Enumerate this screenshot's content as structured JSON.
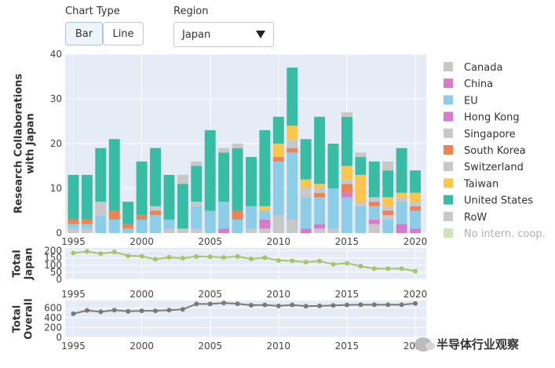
{
  "controls": {
    "chart_type_label": "Chart Type",
    "bar_label": "Bar",
    "line_label": "Line",
    "region_label": "Region",
    "region_value": "Japan"
  },
  "watermark": "半导体行业观察",
  "colors": {
    "plot_bg": "#e5ecf6",
    "Canada": "#c8c8c8",
    "China": "#d67bc9",
    "EU": "#8ecde8",
    "Hong Kong": "#d67bc9",
    "Singapore": "#c8c8c8",
    "South Korea": "#ec8354",
    "Switzerland": "#c8c8c8",
    "Taiwan": "#fbc54e",
    "United States": "#38bca4",
    "RoW": "#c8c8c8",
    "No intern. coop.": "#cfe3b4",
    "japan_line": "#a5c568",
    "overall_line": "#7a7a7a"
  },
  "chart_data": [
    {
      "type": "bar",
      "stacked": true,
      "ylabel": "Research Collaborations with Japan",
      "ylim": [
        0,
        40
      ],
      "yticks": [
        0,
        10,
        20,
        30,
        40
      ],
      "xticks": [
        1995,
        2000,
        2005,
        2010,
        2015,
        2020
      ],
      "x": [
        1995,
        1996,
        1997,
        1998,
        1999,
        2000,
        2001,
        2002,
        2003,
        2004,
        2005,
        2006,
        2007,
        2008,
        2009,
        2010,
        2011,
        2012,
        2013,
        2014,
        2015,
        2016,
        2017,
        2018,
        2019,
        2020
      ],
      "legend_position": "right",
      "legend": [
        "Canada",
        "China",
        "EU",
        "Hong Kong",
        "Singapore",
        "South Korea",
        "Switzerland",
        "Taiwan",
        "United States",
        "RoW",
        "No intern. coop."
      ],
      "series": [
        {
          "name": "RoW",
          "values": [
            1,
            1,
            0,
            0,
            0,
            0,
            0,
            1,
            1,
            1,
            0,
            0,
            0,
            1,
            1,
            4,
            3,
            0,
            1,
            1,
            0,
            0,
            2,
            0,
            0,
            0
          ]
        },
        {
          "name": "China",
          "values": [
            0,
            0,
            0,
            0,
            0,
            0,
            0,
            0,
            0,
            0,
            0,
            1,
            0,
            0,
            2,
            0,
            0,
            1,
            1,
            0,
            0,
            0,
            1,
            0,
            2,
            1
          ]
        },
        {
          "name": "EU",
          "values": [
            1,
            1,
            4,
            3,
            1,
            3,
            4,
            2,
            0,
            5,
            5,
            6,
            3,
            5,
            2,
            12,
            15,
            7,
            6,
            9,
            8,
            6,
            3,
            3,
            5,
            4
          ]
        },
        {
          "name": "Hong Kong",
          "values": [
            0,
            0,
            0,
            0,
            0,
            0,
            0,
            0,
            0,
            0,
            0,
            0,
            0,
            0,
            0,
            0,
            0,
            0,
            0,
            0,
            1,
            0,
            0,
            0,
            0,
            0
          ]
        },
        {
          "name": "Singapore",
          "values": [
            0,
            0,
            0,
            0,
            0,
            0,
            0,
            0,
            0,
            1,
            0,
            0,
            0,
            0,
            0,
            0,
            0,
            1,
            0,
            0,
            0,
            0,
            0,
            1,
            0,
            0
          ]
        },
        {
          "name": "South Korea",
          "values": [
            1,
            1,
            0,
            2,
            1,
            1,
            1,
            0,
            0,
            0,
            0,
            0,
            2,
            0,
            0,
            1,
            1,
            0,
            1,
            0,
            2,
            0,
            1,
            1,
            0,
            1
          ]
        },
        {
          "name": "Switzerland",
          "values": [
            0,
            0,
            3,
            0,
            0,
            0,
            1,
            0,
            0,
            0,
            0,
            0,
            0,
            0,
            0,
            0,
            2,
            1,
            1,
            0,
            1,
            1,
            1,
            1,
            1,
            1
          ]
        },
        {
          "name": "Taiwan",
          "values": [
            0,
            0,
            0,
            0,
            0,
            0,
            0,
            0,
            0,
            0,
            0,
            0,
            0,
            0,
            1,
            3,
            3,
            2,
            1,
            0,
            3,
            6,
            0,
            2,
            1,
            2
          ]
        },
        {
          "name": "United States",
          "values": [
            10,
            10,
            12,
            16,
            5,
            12,
            13,
            10,
            10,
            8,
            18,
            11,
            14,
            11,
            17,
            6,
            13,
            9,
            15,
            10,
            11,
            4,
            8,
            6,
            10,
            5
          ]
        },
        {
          "name": "Canada",
          "values": [
            0,
            0,
            0,
            0,
            0,
            0,
            0,
            0,
            2,
            1,
            0,
            1,
            1,
            0,
            0,
            0,
            0,
            0,
            0,
            0,
            1,
            1,
            0,
            2,
            0,
            0
          ]
        }
      ]
    },
    {
      "type": "line",
      "ylabel": "Total Japan",
      "ylim": [
        0,
        220
      ],
      "yticks": [
        0,
        50,
        100,
        150,
        200
      ],
      "xticks": [
        1995,
        2000,
        2005,
        2010,
        2015,
        2020
      ],
      "x": [
        1995,
        1996,
        1997,
        1998,
        1999,
        2000,
        2001,
        2002,
        2003,
        2004,
        2005,
        2006,
        2007,
        2008,
        2009,
        2010,
        2011,
        2012,
        2013,
        2014,
        2015,
        2016,
        2017,
        2018,
        2019,
        2020
      ],
      "values": [
        185,
        195,
        180,
        192,
        165,
        162,
        140,
        155,
        148,
        160,
        158,
        153,
        160,
        143,
        152,
        133,
        130,
        120,
        128,
        105,
        113,
        92,
        75,
        75,
        75,
        57
      ]
    },
    {
      "type": "line",
      "ylabel": "Total Overall",
      "ylim": [
        0,
        750
      ],
      "yticks": [
        0,
        200,
        400,
        600
      ],
      "xticks": [
        1995,
        2000,
        2005,
        2010,
        2015,
        2020
      ],
      "x": [
        1995,
        1996,
        1997,
        1998,
        1999,
        2000,
        2001,
        2002,
        2003,
        2004,
        2005,
        2006,
        2007,
        2008,
        2009,
        2010,
        2011,
        2012,
        2013,
        2014,
        2015,
        2016,
        2017,
        2018,
        2019,
        2020
      ],
      "values": [
        480,
        550,
        520,
        555,
        530,
        540,
        540,
        555,
        570,
        680,
        680,
        700,
        685,
        655,
        660,
        640,
        660,
        635,
        640,
        650,
        660,
        665,
        665,
        665,
        665,
        690
      ]
    }
  ]
}
